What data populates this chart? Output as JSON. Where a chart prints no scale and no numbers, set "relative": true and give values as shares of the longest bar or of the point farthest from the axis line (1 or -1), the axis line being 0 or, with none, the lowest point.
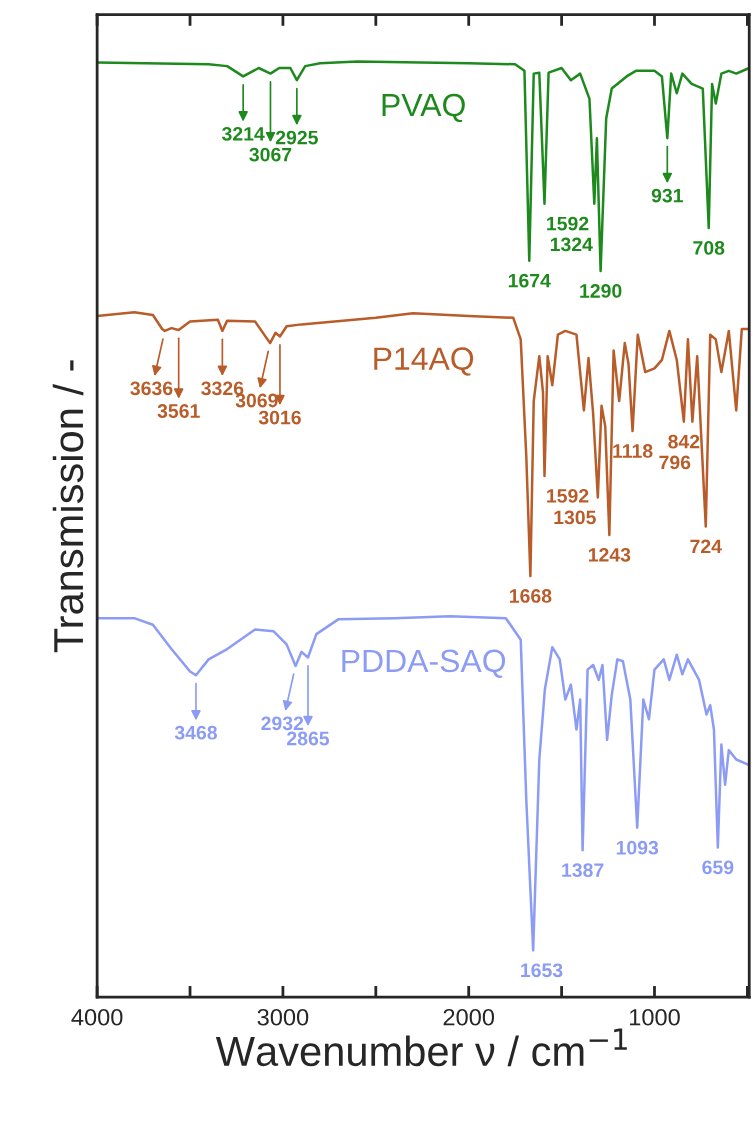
{
  "chart_data": {
    "type": "line",
    "relative": true,
    "xlabel": "Wavenumber ν / cm$^{−1}$",
    "ylabel": "Transmission / -",
    "xlim": [
      4000,
      490
    ],
    "xticks": [
      4000,
      {
        "value": 3500,
        "label": null
      },
      3000,
      {
        "value": 2500,
        "label": null
      },
      2000,
      {
        "value": 1500,
        "label": null
      },
      1000,
      {
        "value": 500,
        "label": null
      }
    ],
    "grid": false,
    "legend": false,
    "marker": "none",
    "line_style": "solid",
    "series": [
      {
        "name": "PVAQ",
        "color": "#1e8a1e",
        "x": [
          4000,
          3400,
          3300,
          3214,
          3130,
          3067,
          3020,
          2960,
          2925,
          2880,
          2800,
          2600,
          2000,
          1750,
          1700,
          1674,
          1650,
          1620,
          1592,
          1570,
          1500,
          1450,
          1400,
          1350,
          1324,
          1310,
          1290,
          1260,
          1230,
          1150,
          1100,
          1000,
          960,
          931,
          910,
          880,
          850,
          800,
          740,
          708,
          690,
          670,
          640,
          600,
          560,
          490
        ],
        "values": [
          0.999,
          0.997,
          0.995,
          0.984,
          0.993,
          0.987,
          0.993,
          0.993,
          0.98,
          0.995,
          0.998,
          1.0,
          0.998,
          0.997,
          0.99,
          0.787,
          0.987,
          0.988,
          0.848,
          0.988,
          0.993,
          0.98,
          0.987,
          0.96,
          0.848,
          0.918,
          0.776,
          0.939,
          0.971,
          0.984,
          0.99,
          0.99,
          0.984,
          0.918,
          0.987,
          0.966,
          0.987,
          0.976,
          0.971,
          0.822,
          0.976,
          0.955,
          0.987,
          0.99,
          0.987,
          0.993
        ]
      },
      {
        "name": "P14AQ",
        "color": "#b85c2a",
        "x": [
          4000,
          3800,
          3700,
          3650,
          3636,
          3600,
          3561,
          3500,
          3350,
          3326,
          3300,
          3150,
          3069,
          3040,
          3016,
          2980,
          2900,
          2500,
          2300,
          2000,
          1760,
          1720,
          1690,
          1668,
          1650,
          1620,
          1600,
          1592,
          1575,
          1550,
          1520,
          1480,
          1420,
          1380,
          1355,
          1330,
          1305,
          1285,
          1265,
          1243,
          1220,
          1190,
          1160,
          1140,
          1118,
          1090,
          1050,
          1000,
          960,
          920,
          880,
          842,
          820,
          796,
          770,
          724,
          700,
          670,
          640,
          600,
          560,
          530,
          490
        ],
        "values": [
          0.728,
          0.732,
          0.729,
          0.714,
          0.712,
          0.715,
          0.713,
          0.722,
          0.724,
          0.712,
          0.723,
          0.722,
          0.699,
          0.71,
          0.706,
          0.717,
          0.719,
          0.726,
          0.731,
          0.728,
          0.726,
          0.703,
          0.578,
          0.45,
          0.637,
          0.685,
          0.646,
          0.557,
          0.685,
          0.654,
          0.708,
          0.712,
          0.708,
          0.627,
          0.683,
          0.623,
          0.534,
          0.632,
          0.61,
          0.494,
          0.691,
          0.637,
          0.699,
          0.677,
          0.605,
          0.708,
          0.668,
          0.672,
          0.681,
          0.712,
          0.681,
          0.615,
          0.703,
          0.615,
          0.685,
          0.503,
          0.708,
          0.703,
          0.668,
          0.712,
          0.627,
          0.714,
          0.714
        ]
      },
      {
        "name": "PDDA-SAQ",
        "color": "#8c9cf5",
        "x": [
          4000,
          3800,
          3700,
          3600,
          3500,
          3468,
          3400,
          3300,
          3150,
          3050,
          2980,
          2932,
          2900,
          2865,
          2820,
          2700,
          2400,
          2100,
          1800,
          1720,
          1690,
          1653,
          1620,
          1590,
          1550,
          1510,
          1480,
          1450,
          1420,
          1400,
          1387,
          1360,
          1330,
          1300,
          1280,
          1255,
          1230,
          1200,
          1170,
          1130,
          1093,
          1060,
          1030,
          1000,
          950,
          920,
          880,
          850,
          820,
          760,
          720,
          700,
          680,
          659,
          640,
          620,
          600,
          560,
          490
        ],
        "values": [
          0.405,
          0.405,
          0.398,
          0.372,
          0.348,
          0.344,
          0.361,
          0.372,
          0.393,
          0.391,
          0.377,
          0.354,
          0.369,
          0.363,
          0.388,
          0.404,
          0.405,
          0.407,
          0.405,
          0.382,
          0.211,
          0.05,
          0.254,
          0.329,
          0.374,
          0.361,
          0.318,
          0.334,
          0.286,
          0.318,
          0.157,
          0.35,
          0.355,
          0.339,
          0.355,
          0.275,
          0.323,
          0.361,
          0.359,
          0.318,
          0.181,
          0.318,
          0.297,
          0.35,
          0.361,
          0.339,
          0.366,
          0.345,
          0.361,
          0.339,
          0.302,
          0.312,
          0.286,
          0.16,
          0.27,
          0.227,
          0.264,
          0.254,
          0.248
        ]
      }
    ],
    "annotations": [
      {
        "text": "3214",
        "x": 3214,
        "y": 0.984
      },
      {
        "text": "3067",
        "x": 3067,
        "y": 0.987
      },
      {
        "text": "2925",
        "x": 2925,
        "y": 0.98
      },
      {
        "text": "1674",
        "x": 1674,
        "y": 0.787
      },
      {
        "text": "1592",
        "x": 1592,
        "y": 0.848
      },
      {
        "text": "1324",
        "x": 1324,
        "y": 0.848
      },
      {
        "text": "1290",
        "x": 1290,
        "y": 0.776
      },
      {
        "text": "931",
        "x": 931,
        "y": 0.918
      },
      {
        "text": "708",
        "x": 708,
        "y": 0.822
      },
      {
        "text": "3636",
        "x": 3636,
        "y": 0.712
      },
      {
        "text": "3561",
        "x": 3561,
        "y": 0.713
      },
      {
        "text": "3326",
        "x": 3326,
        "y": 0.712
      },
      {
        "text": "3069",
        "x": 3069,
        "y": 0.699
      },
      {
        "text": "3016",
        "x": 3016,
        "y": 0.706
      },
      {
        "text": "1668",
        "x": 1668,
        "y": 0.45
      },
      {
        "text": "1592",
        "x": 1592,
        "y": 0.557
      },
      {
        "text": "1305",
        "x": 1305,
        "y": 0.534
      },
      {
        "text": "1243",
        "x": 1243,
        "y": 0.494
      },
      {
        "text": "1118",
        "x": 1118,
        "y": 0.605
      },
      {
        "text": "842",
        "x": 842,
        "y": 0.615
      },
      {
        "text": "796",
        "x": 796,
        "y": 0.615
      },
      {
        "text": "724",
        "x": 724,
        "y": 0.503
      },
      {
        "text": "3468",
        "x": 3468,
        "y": 0.344
      },
      {
        "text": "2932",
        "x": 2932,
        "y": 0.354
      },
      {
        "text": "2865",
        "x": 2865,
        "y": 0.363
      },
      {
        "text": "1653",
        "x": 1653,
        "y": 0.05
      },
      {
        "text": "1387",
        "x": 1387,
        "y": 0.157
      },
      {
        "text": "1093",
        "x": 1093,
        "y": 0.181
      },
      {
        "text": "659",
        "x": 659,
        "y": 0.16
      }
    ]
  }
}
